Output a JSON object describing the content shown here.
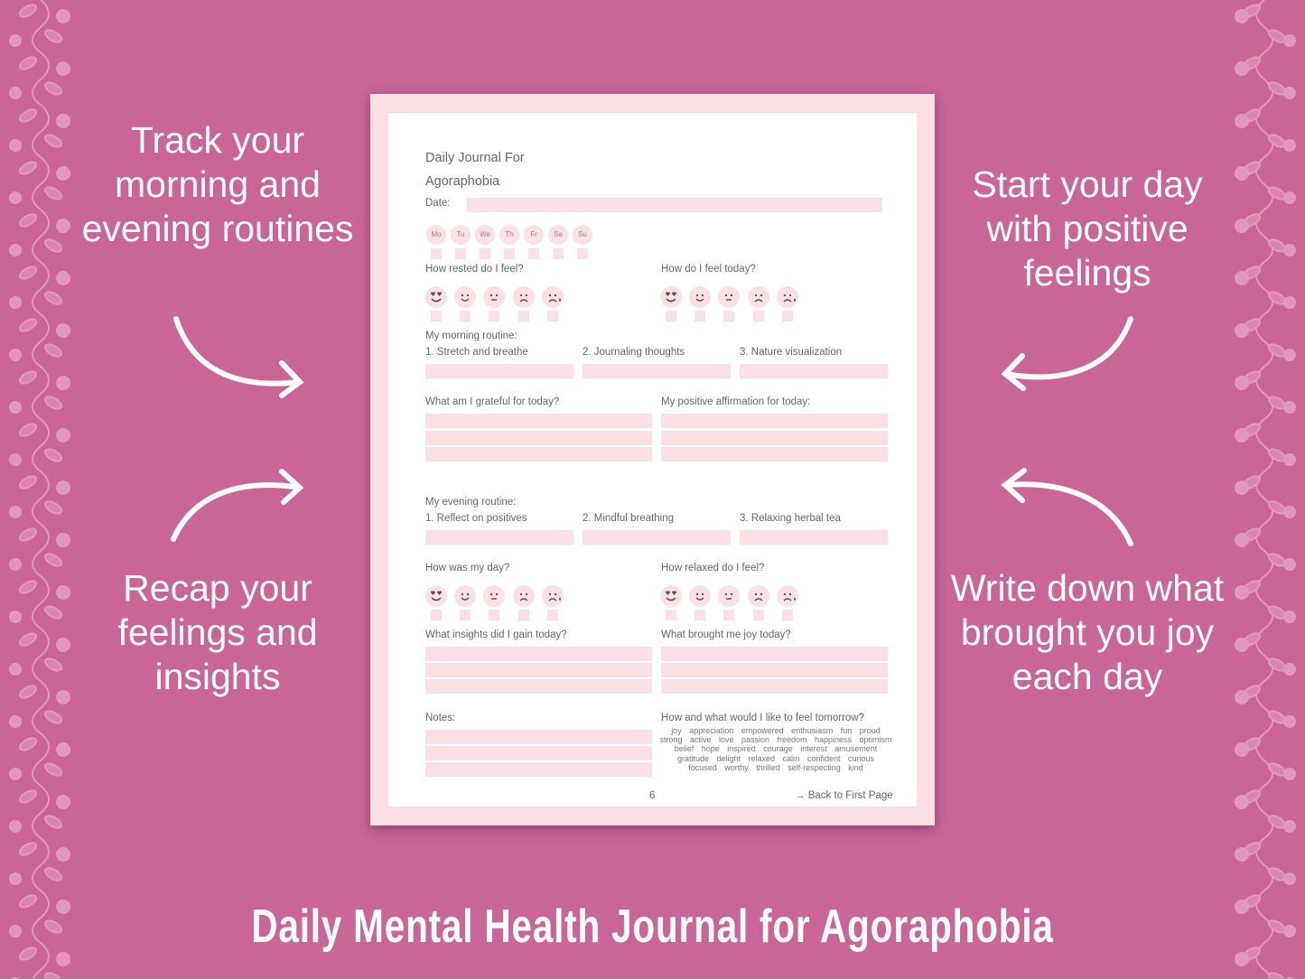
{
  "colors": {
    "background": "#c96597",
    "paper_border": "#f9dfe4",
    "field": "#fbe1e6",
    "text": "#666666",
    "face_features": "#555555"
  },
  "callouts": {
    "top_left": "Track your morning and evening routines",
    "bottom_left": "Recap your feelings and insights",
    "top_right": "Start your day with positive feelings",
    "bottom_right": "Write down what brought you joy each day"
  },
  "journal": {
    "title_line1": "Daily Journal For",
    "title_line2": "Agoraphobia",
    "date_label": "Date:",
    "days": [
      "Mo",
      "Tu",
      "We",
      "Th",
      "Fr",
      "Sa",
      "Su"
    ],
    "faces": [
      "heart-eyes",
      "smile",
      "neutral",
      "frown",
      "crying"
    ],
    "rested_label": "How rested do I feel?",
    "feel_today_label": "How do I feel today?",
    "morning": {
      "label": "My morning routine:",
      "items": [
        "1. Stretch and breathe",
        "2. Journaling thoughts",
        "3. Nature visualization"
      ]
    },
    "grateful_label": "What am I grateful for today?",
    "affirmation_label": "My positive affirmation for today:",
    "evening": {
      "label": "My evening routine:",
      "items": [
        "1. Reflect on positives",
        "2. Mindful breathing",
        "3. Relaxing herbal tea"
      ]
    },
    "day_label": "How was my day?",
    "relaxed_label": "How relaxed do I feel?",
    "insights_label": "What insights did I gain today?",
    "joy_label": "What brought me joy today?",
    "notes_label": "Notes:",
    "tomorrow_label": "How and what would I like to feel tomorrow?",
    "feelings_words": "joy appreciation empowered enthusiasm fun proud strong active love passion freedom happiness optimism belief hope inspired courage interest amusement gratitude delight relaxed calm confident curious focused worthy thrilled self-respecting kind",
    "page_number": "6",
    "back_link": "→ Back to First Page"
  },
  "footer_title": "Daily Mental Health Journal for Agoraphobia"
}
